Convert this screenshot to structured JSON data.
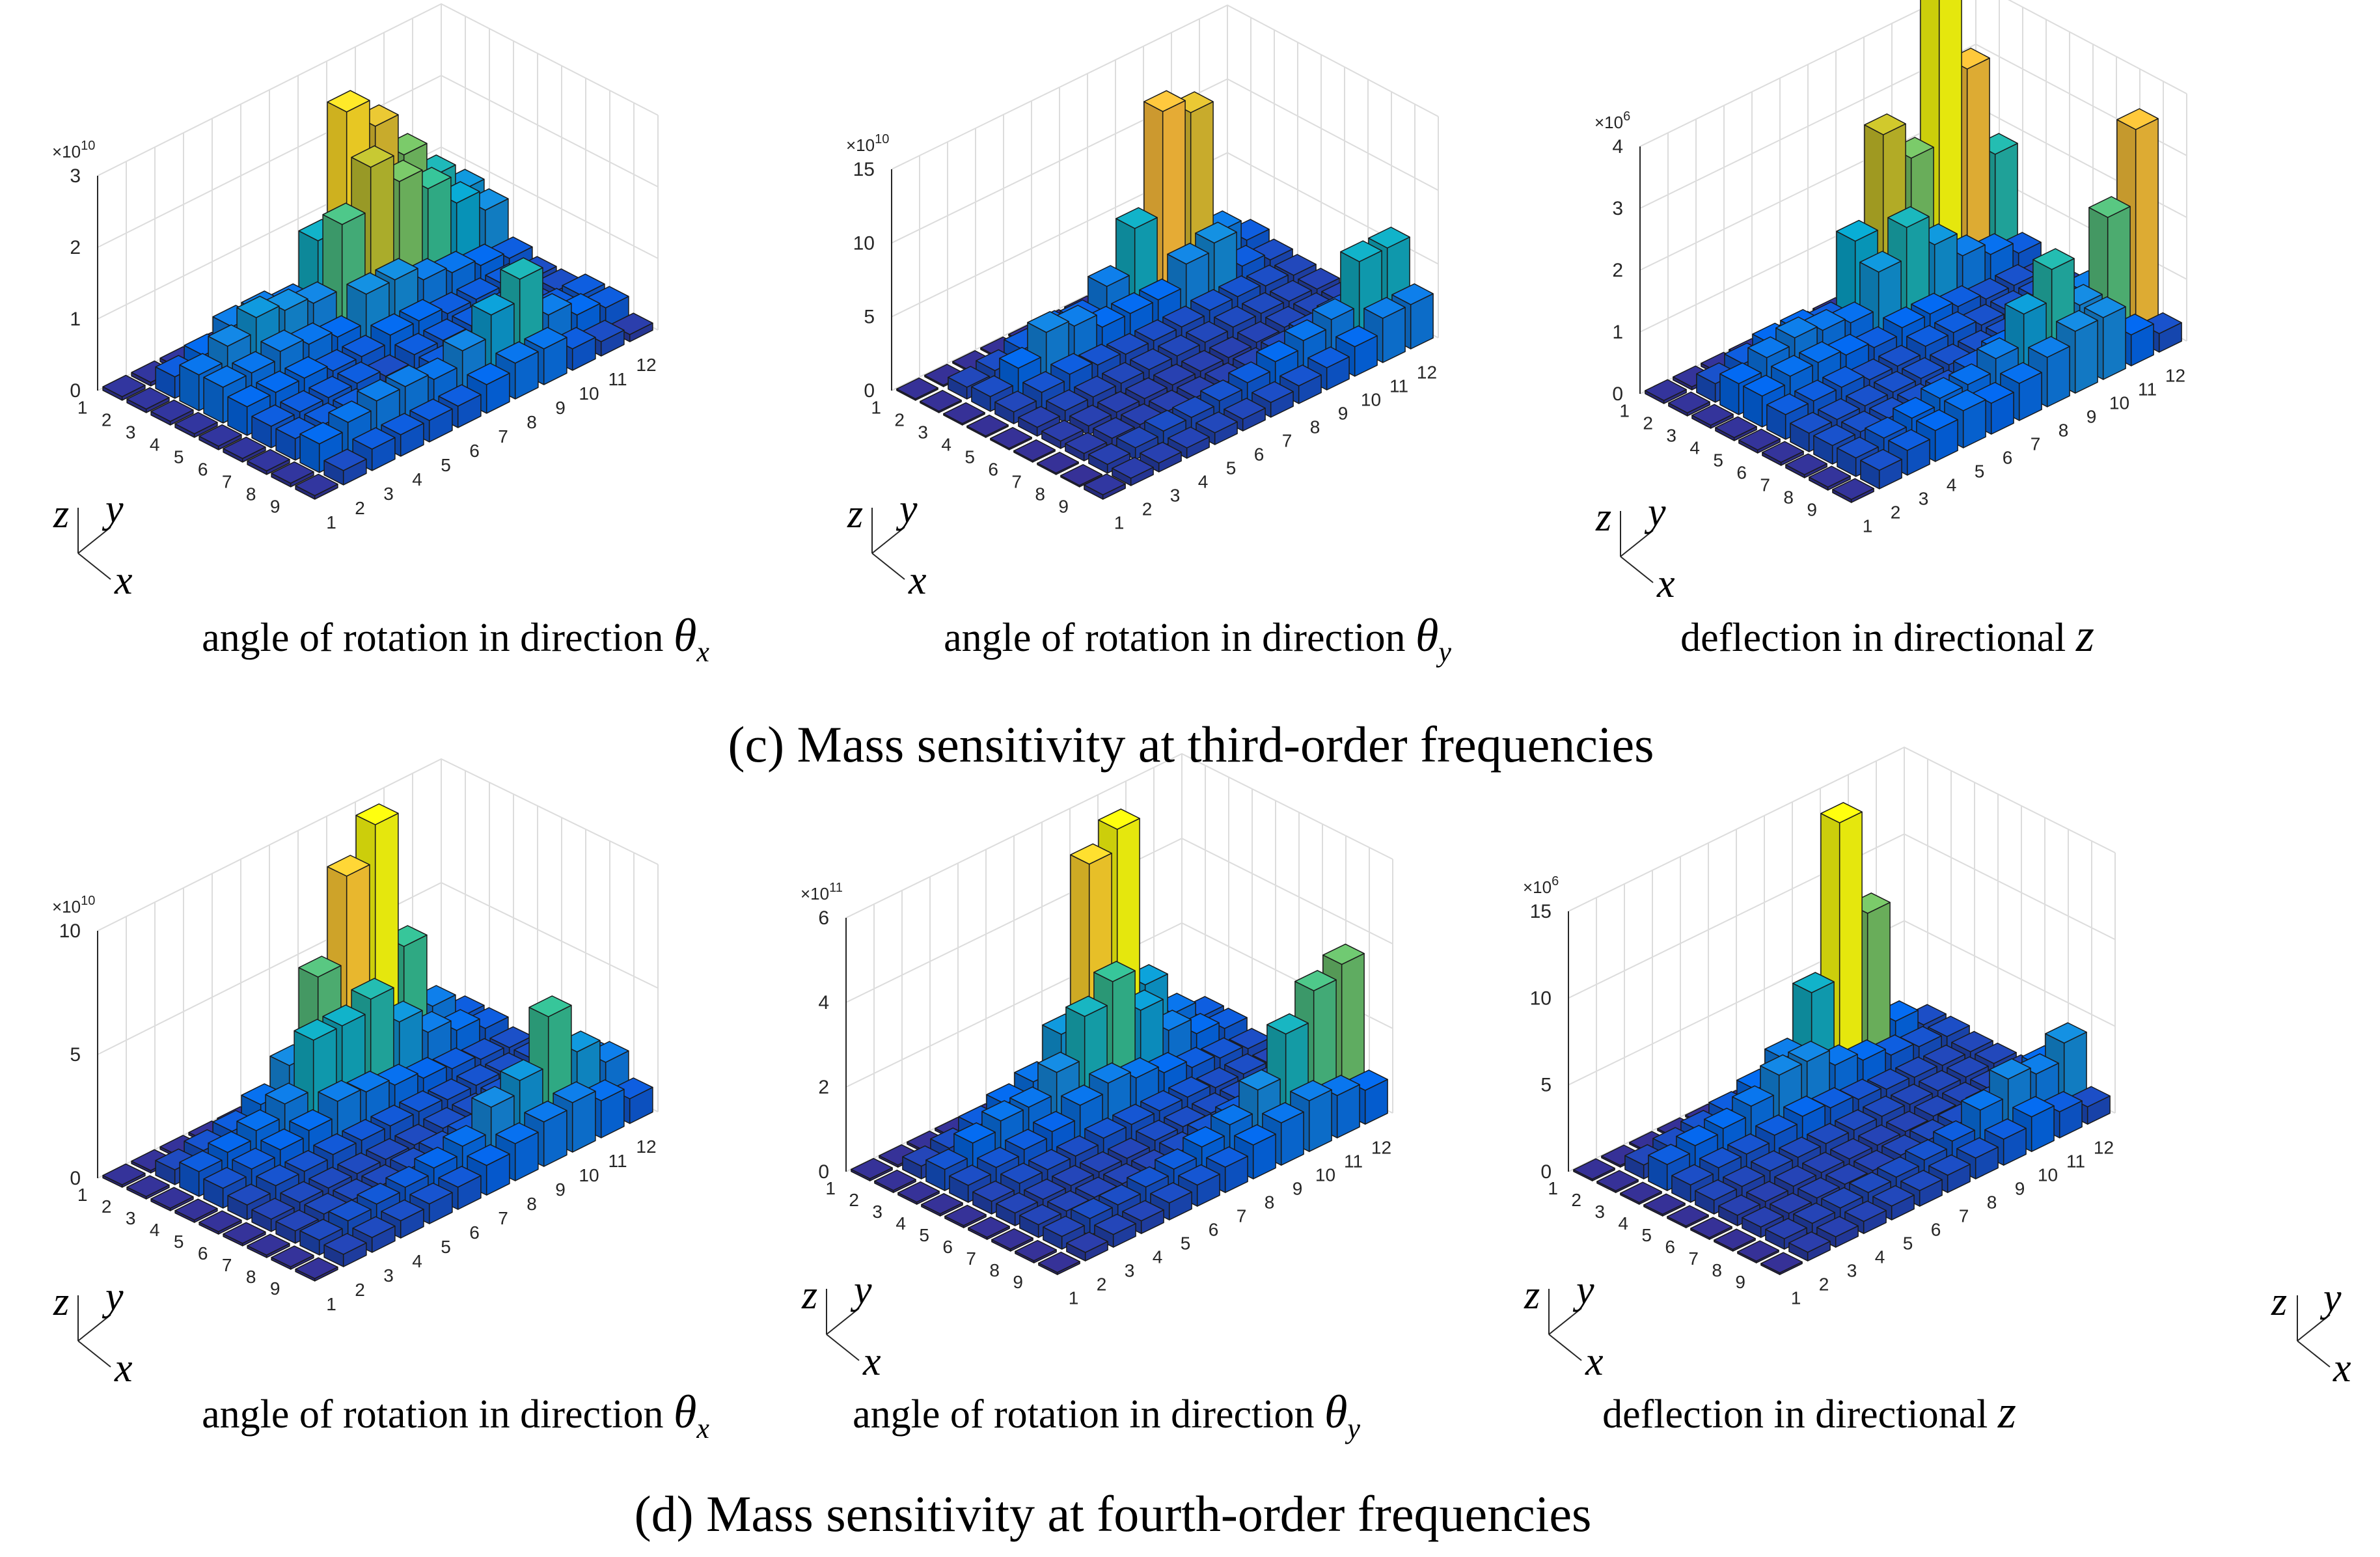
{
  "figure": {
    "caption_c": "(c) Mass sensitivity at third-order frequencies",
    "caption_d": "(d) Mass sensitivity at fourth-order frequencies",
    "axis_letters": {
      "z": "z",
      "y": "y",
      "x": "x"
    }
  },
  "colors": {
    "bar_edge": "#1a1a1a",
    "grid": "#dcdcdc",
    "axis": "#262626"
  },
  "chart_data": [
    {
      "type": "bar3d",
      "xlabel": "angle of rotation in direction",
      "xlabel_sym": "θ",
      "xlabel_sub": "x",
      "exponent_base": "×10",
      "exponent_pow": "10",
      "zlim": [
        0,
        3
      ],
      "zticks": [
        "0",
        "1",
        "2",
        "3"
      ],
      "x_ticks": [
        "1",
        "2",
        "3",
        "4",
        "5",
        "6",
        "7",
        "8",
        "9"
      ],
      "y_ticks": [
        "1",
        "2",
        "3",
        "4",
        "5",
        "6",
        "7",
        "8",
        "9",
        "10",
        "11",
        "12"
      ],
      "values": [
        [
          0.05,
          0.05,
          0.05,
          0.05,
          0.05,
          0.05,
          0.05,
          0.05,
          0.05,
          0.05,
          0.05,
          0.05
        ],
        [
          0.05,
          0.3,
          0.4,
          0.6,
          0.6,
          0.5,
          1.2,
          2.8,
          2.4,
          1.8,
          1.3,
          0.9
        ],
        [
          0.05,
          0.5,
          0.7,
          0.9,
          0.8,
          0.7,
          1.6,
          2.2,
          1.8,
          1.5,
          1.1,
          0.8
        ],
        [
          0.05,
          0.5,
          0.5,
          0.6,
          0.5,
          0.4,
          0.8,
          0.8,
          0.6,
          0.5,
          0.4,
          0.3
        ],
        [
          0.05,
          0.4,
          0.4,
          0.4,
          0.3,
          0.3,
          0.4,
          0.4,
          0.3,
          0.3,
          0.3,
          0.2
        ],
        [
          0.05,
          0.3,
          0.3,
          0.3,
          0.3,
          0.2,
          0.3,
          0.3,
          0.3,
          0.3,
          0.2,
          0.2
        ],
        [
          0.05,
          0.3,
          0.3,
          0.3,
          0.2,
          0.2,
          0.3,
          0.3,
          0.3,
          0.3,
          0.3,
          0.3
        ],
        [
          0.05,
          0.4,
          0.5,
          0.6,
          0.6,
          0.5,
          0.7,
          1.0,
          1.3,
          0.6,
          0.4,
          0.3
        ],
        [
          0.05,
          0.2,
          0.3,
          0.3,
          0.3,
          0.3,
          0.4,
          0.5,
          0.5,
          0.3,
          0.2,
          0.1
        ]
      ]
    },
    {
      "type": "bar3d",
      "xlabel": "angle of rotation in direction",
      "xlabel_sym": "θ",
      "xlabel_sub": "y",
      "exponent_base": "×10",
      "exponent_pow": "10",
      "zlim": [
        0,
        15
      ],
      "zticks": [
        "0",
        "5",
        "10",
        "15"
      ],
      "x_ticks": [
        "1",
        "2",
        "3",
        "4",
        "5",
        "6",
        "7",
        "8",
        "9"
      ],
      "y_ticks": [
        "1",
        "2",
        "3",
        "4",
        "5",
        "6",
        "7",
        "8",
        "9",
        "10",
        "11",
        "12"
      ],
      "values": [
        [
          0.1,
          0.1,
          0.1,
          0.1,
          0.1,
          0.1,
          0.1,
          0.1,
          0.1,
          0.1,
          0.1,
          0.1
        ],
        [
          0.1,
          0.8,
          1.0,
          1.5,
          1.8,
          1.6,
          3.0,
          6.0,
          13.0,
          12.0,
          3.0,
          1.5
        ],
        [
          0.1,
          1.0,
          2.0,
          3.5,
          3.0,
          2.0,
          2.0,
          2.0,
          3.5,
          4.0,
          1.5,
          1.0
        ],
        [
          0.1,
          0.8,
          1.2,
          1.5,
          1.2,
          1.0,
          1.0,
          1.0,
          1.2,
          1.2,
          1.0,
          0.8
        ],
        [
          0.1,
          0.6,
          0.8,
          0.8,
          0.8,
          0.8,
          0.8,
          0.8,
          0.9,
          0.9,
          0.8,
          0.7
        ],
        [
          0.1,
          0.5,
          0.6,
          0.6,
          0.6,
          0.6,
          0.6,
          0.6,
          0.7,
          0.8,
          0.8,
          0.7
        ],
        [
          0.1,
          0.5,
          0.6,
          0.6,
          0.6,
          0.6,
          0.6,
          0.7,
          0.9,
          1.2,
          1.5,
          1.8
        ],
        [
          0.1,
          0.6,
          0.8,
          1.0,
          1.0,
          1.2,
          1.5,
          2.0,
          2.5,
          3.0,
          6.0,
          6.0
        ],
        [
          0.3,
          0.5,
          0.6,
          0.7,
          0.8,
          0.8,
          1.0,
          1.2,
          1.5,
          2.0,
          3.0,
          3.0
        ]
      ]
    },
    {
      "type": "bar3d",
      "xlabel": "deflection in directional",
      "xlabel_sym": "z",
      "xlabel_sub": "",
      "exponent_base": "×10",
      "exponent_pow": "6",
      "zlim": [
        0,
        4
      ],
      "zticks": [
        "0",
        "1",
        "2",
        "3",
        "4"
      ],
      "x_ticks": [
        "1",
        "2",
        "3",
        "4",
        "5",
        "6",
        "7",
        "8",
        "9"
      ],
      "y_ticks": [
        "1",
        "2",
        "3",
        "4",
        "5",
        "6",
        "7",
        "8",
        "9",
        "10",
        "11",
        "12"
      ],
      "values": [
        [
          0.05,
          0.05,
          0.05,
          0.05,
          0.05,
          0.05,
          0.05,
          0.05,
          0.05,
          0.05,
          0.05,
          0.05
        ],
        [
          0.05,
          0.3,
          0.4,
          0.5,
          0.5,
          0.4,
          1.5,
          3.0,
          2.4,
          5.5,
          3.4,
          1.8
        ],
        [
          0.05,
          0.5,
          0.7,
          0.8,
          0.7,
          0.6,
          1.2,
          1.7,
          1.2,
          0.8,
          0.6,
          0.4
        ],
        [
          0.05,
          0.5,
          0.6,
          0.6,
          0.5,
          0.4,
          0.5,
          0.5,
          0.4,
          0.3,
          0.3,
          0.2
        ],
        [
          0.05,
          0.4,
          0.4,
          0.4,
          0.3,
          0.3,
          0.4,
          0.4,
          0.3,
          0.3,
          0.3,
          0.2
        ],
        [
          0.05,
          0.3,
          0.3,
          0.3,
          0.3,
          0.3,
          0.3,
          0.3,
          0.3,
          0.3,
          0.3,
          0.3
        ],
        [
          0.05,
          0.3,
          0.3,
          0.3,
          0.3,
          0.3,
          0.4,
          0.5,
          0.5,
          0.6,
          0.8,
          1.2
        ],
        [
          0.05,
          0.3,
          0.4,
          0.5,
          0.6,
          0.6,
          0.8,
          1.3,
          1.8,
          1.0,
          2.2,
          3.4
        ],
        [
          0.05,
          0.3,
          0.4,
          0.5,
          0.6,
          0.5,
          0.6,
          0.8,
          1.0,
          1.0,
          0.5,
          0.3
        ]
      ]
    },
    {
      "type": "bar3d",
      "xlabel": "angle of rotation in direction",
      "xlabel_sym": "θ",
      "xlabel_sub": "x",
      "exponent_base": "×10",
      "exponent_pow": "10",
      "zlim": [
        0,
        10
      ],
      "zticks": [
        "0",
        "5",
        "10"
      ],
      "x_ticks": [
        "1",
        "2",
        "3",
        "4",
        "5",
        "6",
        "7",
        "8",
        "9"
      ],
      "y_ticks": [
        "1",
        "2",
        "3",
        "4",
        "5",
        "6",
        "7",
        "8",
        "9",
        "10",
        "11",
        "12"
      ],
      "values": [
        [
          0.1,
          0.1,
          0.1,
          0.1,
          0.1,
          0.1,
          0.1,
          0.1,
          0.1,
          0.1,
          0.1,
          0.1
        ],
        [
          0.1,
          0.6,
          0.8,
          1.0,
          1.5,
          2.5,
          5.5,
          9.0,
          10.5,
          5.0,
          2.0,
          1.0
        ],
        [
          0.1,
          1.0,
          1.2,
          1.5,
          2.0,
          4.0,
          4.0,
          4.5,
          3.0,
          2.0,
          1.5,
          1.0
        ],
        [
          0.1,
          0.8,
          1.0,
          1.2,
          1.4,
          2.0,
          1.8,
          1.5,
          1.2,
          1.0,
          0.8,
          0.7
        ],
        [
          0.1,
          0.6,
          0.8,
          0.8,
          0.9,
          0.9,
          0.9,
          0.9,
          0.8,
          0.8,
          0.7,
          0.7
        ],
        [
          0.1,
          0.5,
          0.6,
          0.6,
          0.6,
          0.6,
          0.6,
          0.7,
          0.7,
          0.8,
          0.8,
          0.8
        ],
        [
          0.1,
          0.5,
          0.6,
          0.6,
          0.6,
          0.7,
          0.8,
          0.9,
          1.0,
          1.2,
          1.5,
          1.8
        ],
        [
          0.1,
          0.6,
          0.8,
          0.9,
          1.0,
          1.2,
          1.5,
          2.5,
          3.0,
          5.0,
          3.0,
          2.0
        ],
        [
          0.1,
          0.5,
          0.6,
          0.7,
          0.8,
          0.9,
          1.2,
          1.5,
          1.8,
          2.0,
          1.5,
          1.0
        ]
      ]
    },
    {
      "type": "bar3d",
      "xlabel": "angle of rotation in direction",
      "xlabel_sym": "θ",
      "xlabel_sub": "y",
      "exponent_base": "×10",
      "exponent_pow": "11",
      "zlim": [
        0,
        6
      ],
      "zticks": [
        "0",
        "2",
        "4",
        "6"
      ],
      "x_ticks": [
        "1",
        "2",
        "3",
        "4",
        "5",
        "6",
        "7",
        "8",
        "9"
      ],
      "y_ticks": [
        "1",
        "2",
        "3",
        "4",
        "5",
        "6",
        "7",
        "8",
        "9",
        "10",
        "11",
        "12"
      ],
      "values": [
        [
          0.05,
          0.05,
          0.05,
          0.05,
          0.05,
          0.05,
          0.05,
          0.05,
          0.05,
          0.05,
          0.05,
          0.05
        ],
        [
          0.05,
          0.3,
          0.4,
          0.6,
          0.8,
          1.0,
          1.8,
          5.5,
          6.0,
          2.0,
          1.0,
          0.6
        ],
        [
          0.05,
          0.5,
          0.8,
          1.0,
          1.0,
          1.5,
          2.5,
          3.0,
          2.0,
          1.2,
          0.8,
          0.6
        ],
        [
          0.05,
          0.4,
          0.5,
          0.6,
          0.7,
          1.0,
          1.2,
          1.0,
          0.8,
          0.6,
          0.5,
          0.4
        ],
        [
          0.05,
          0.3,
          0.4,
          0.4,
          0.4,
          0.5,
          0.5,
          0.5,
          0.5,
          0.4,
          0.4,
          0.3
        ],
        [
          0.05,
          0.3,
          0.3,
          0.3,
          0.3,
          0.3,
          0.4,
          0.4,
          0.4,
          0.4,
          0.4,
          0.4
        ],
        [
          0.05,
          0.3,
          0.3,
          0.3,
          0.3,
          0.3,
          0.4,
          0.5,
          0.6,
          0.7,
          0.8,
          1.0
        ],
        [
          0.05,
          0.3,
          0.4,
          0.4,
          0.5,
          0.6,
          0.8,
          1.0,
          1.5,
          2.5,
          3.2,
          3.5
        ],
        [
          0.05,
          0.2,
          0.3,
          0.3,
          0.4,
          0.5,
          0.6,
          0.8,
          1.0,
          1.2,
          1.0,
          0.8
        ]
      ]
    },
    {
      "type": "bar3d",
      "xlabel": "deflection in directional",
      "xlabel_sym": "z",
      "xlabel_sub": "",
      "exponent_base": "×10",
      "exponent_pow": "6",
      "zlim": [
        0,
        15
      ],
      "zticks": [
        "0",
        "5",
        "10",
        "15"
      ],
      "x_ticks": [
        "1",
        "2",
        "3",
        "4",
        "5",
        "6",
        "7",
        "8",
        "9"
      ],
      "y_ticks": [
        "1",
        "2",
        "3",
        "4",
        "5",
        "6",
        "7",
        "8",
        "9",
        "10",
        "11",
        "12"
      ],
      "values": [
        [
          0.1,
          0.1,
          0.1,
          0.1,
          0.1,
          0.1,
          0.1,
          0.1,
          0.1,
          0.1,
          0.1,
          0.1
        ],
        [
          0.1,
          0.8,
          1.0,
          1.2,
          1.5,
          2.0,
          3.0,
          6.0,
          15.0,
          9.0,
          2.0,
          1.0
        ],
        [
          0.1,
          1.5,
          1.8,
          2.0,
          2.5,
          3.5,
          3.5,
          2.5,
          2.0,
          1.5,
          1.2,
          1.0
        ],
        [
          0.1,
          1.0,
          1.2,
          1.2,
          1.5,
          1.8,
          1.5,
          1.2,
          1.0,
          0.9,
          0.8,
          0.8
        ],
        [
          0.1,
          0.8,
          0.8,
          0.9,
          0.9,
          0.9,
          0.9,
          0.9,
          0.8,
          0.8,
          0.8,
          0.8
        ],
        [
          0.1,
          0.6,
          0.6,
          0.7,
          0.7,
          0.7,
          0.7,
          0.7,
          0.8,
          0.8,
          0.8,
          0.8
        ],
        [
          0.1,
          0.6,
          0.6,
          0.7,
          0.7,
          0.7,
          0.8,
          0.9,
          1.0,
          1.2,
          1.5,
          2.0
        ],
        [
          0.1,
          0.6,
          0.7,
          0.8,
          0.9,
          1.0,
          1.2,
          1.5,
          2.5,
          3.5,
          3.0,
          4.0
        ],
        [
          0.1,
          0.5,
          0.6,
          0.7,
          0.8,
          0.9,
          1.0,
          1.2,
          1.5,
          2.0,
          1.5,
          1.0
        ]
      ]
    }
  ]
}
